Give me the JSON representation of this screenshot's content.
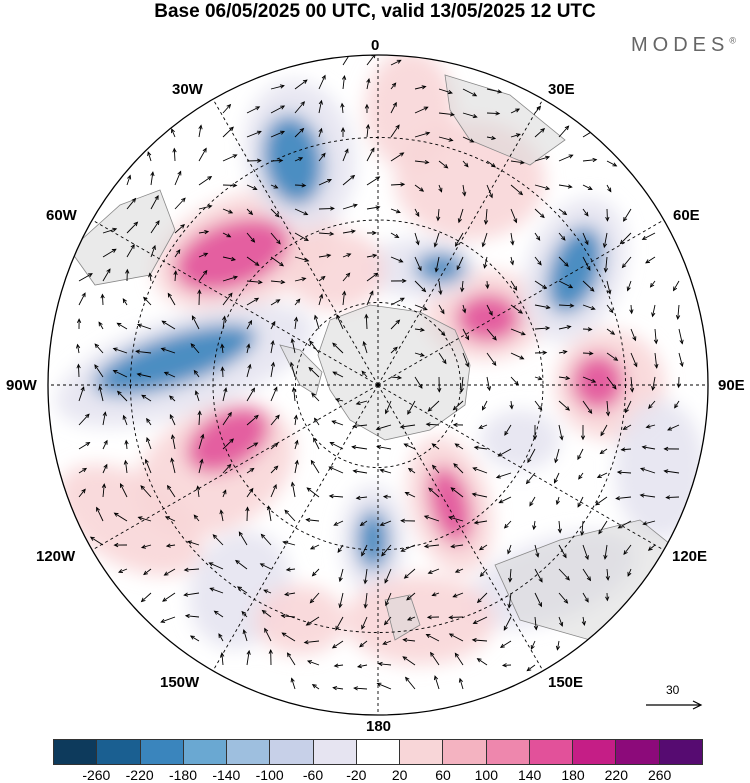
{
  "title": "Base 06/05/2025 00 UTC, valid 13/05/2025 12 UTC",
  "brand": "MODES",
  "brand_mark": "®",
  "longitude_labels": {
    "lon_0": "0",
    "lon_30e": "30E",
    "lon_60e": "60E",
    "lon_90e": "90E",
    "lon_120e": "120E",
    "lon_150e": "150E",
    "lon_180": "180",
    "lon_150w": "150W",
    "lon_120w": "120W",
    "lon_90w": "90W",
    "lon_60w": "60W",
    "lon_30w": "30W"
  },
  "reference_vector_label": "30",
  "colorbar": {
    "colors": [
      "#0d3a5c",
      "#1a5f91",
      "#3a85bd",
      "#6aa8d2",
      "#9ebfdf",
      "#c7d0e8",
      "#e6e4f1",
      "#ffffff",
      "#f8d6d8",
      "#f4b3c1",
      "#ee87ad",
      "#e2519a",
      "#c51e86",
      "#8c0a7a",
      "#560b71"
    ],
    "tick_labels": [
      "-260",
      "-220",
      "-180",
      "-140",
      "-100",
      "-60",
      "-20",
      "20",
      "60",
      "100",
      "140",
      "180",
      "220",
      "260"
    ]
  },
  "field_colors": {
    "positive_strong": "#e2519a",
    "positive_weak": "#f8d6d8",
    "negative_strong": "#3a85bd",
    "negative_weak": "#e6e4f1",
    "land": "#d9d9d9"
  }
}
